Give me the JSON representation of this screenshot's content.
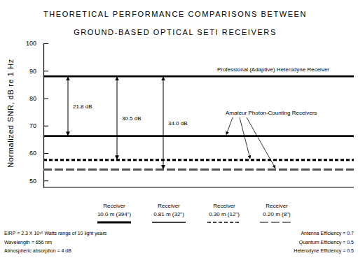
{
  "chart_data": {
    "type": "line",
    "title": "THEORETICAL PERFORMANCE COMPARISONS BETWEEN",
    "subtitle": "GROUND-BASED OPTICAL SETI RECEIVERS",
    "y_label": "Normalized SNR, dB re 1 Hz",
    "ylim": [
      47.5,
      100
    ],
    "yticks": [
      50,
      60,
      70,
      80,
      90,
      100
    ],
    "series": [
      {
        "name": "Receiver 10.0 m (394\")",
        "color": "#000000",
        "line_style": "solid",
        "values": [
          88.0
        ]
      },
      {
        "name": "Receiver 0.81 m (32\")",
        "color": "#000000",
        "line_style": "solid",
        "values": [
          66.2
        ]
      },
      {
        "name": "Receiver 0.30 m (12\")",
        "color": "#000000",
        "line_style": "dashed",
        "values": [
          57.5
        ]
      },
      {
        "name": "Receiver 0.20 m (8\")",
        "color": "#555555",
        "line_style": "long-dash",
        "values": [
          54.0
        ]
      }
    ],
    "annotations": [
      "Professional (Adaptive) Heterodyne Receiver",
      "Amateur Photon-Counting Receivers"
    ],
    "differences": [
      {
        "value": 21.8,
        "label": "21.8 dB"
      },
      {
        "value": 30.5,
        "label": "30.5 dB"
      },
      {
        "value": 34.0,
        "label": "34.0 dB"
      }
    ],
    "notes": [
      "EIRP = 2.3 X 10¹⁵ Watts range of 10 light years",
      "Wavelength = 656 nm",
      "Atmospheric absorption = 4 dB",
      "Antenna Efficiency = 0.7",
      "Quantum Efficiency = 0.5",
      "Heterodyne Efficiency = 0.5"
    ]
  }
}
